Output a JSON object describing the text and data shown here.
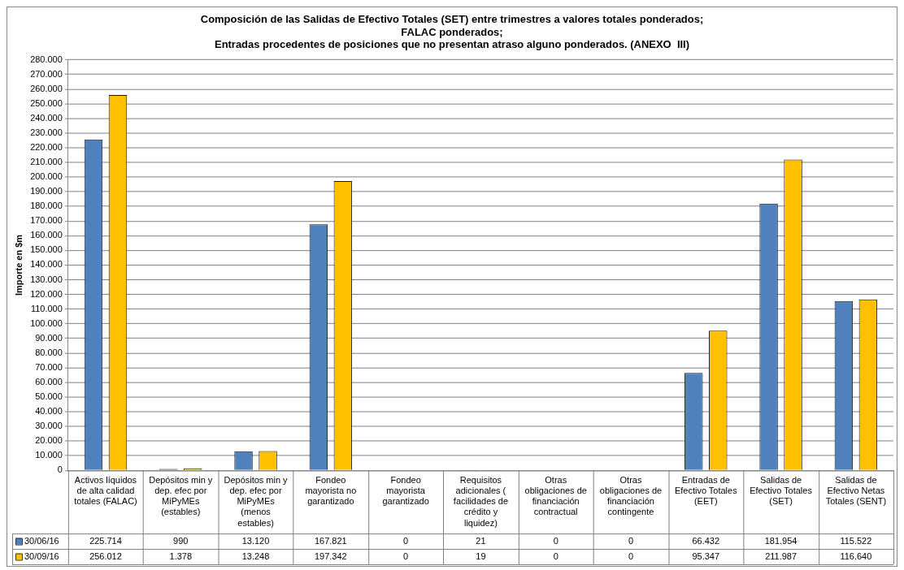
{
  "chart_data": {
    "type": "bar",
    "title": "Composición de las Salidas de Efectivo Totales (SET) entre trimestres a valores totales ponderados;\nFALAC ponderados;\nEntradas procedentes de posiciones que no presentan atraso alguno ponderados. (ANEXO  III)",
    "ylabel": "Importe en $m",
    "categories": [
      "Activos líquidos de alta calidad totales (FALAC)",
      "Depósitos min y dep. efec por MiPyMEs (estables)",
      "Depósitos min y dep. efec por MiPyMEs (menos estables)",
      "Fondeo mayorista no garantizado",
      "Fondeo mayorista garantizado",
      "Requisitos adicionales ( facilidades de crédito y liquidez)",
      "Otras obligaciones de financiación contractual",
      "Otras obligaciones de financiación contingente",
      "Entradas de Efectivo Totales (EET)",
      "Salidas de Efectivo Totales (SET)",
      "Salidas de Efectivo Netas Totales (SENT)"
    ],
    "series": [
      {
        "name": "30/06/16",
        "color": "#4f81bd",
        "values": [
          225714,
          990,
          13120,
          167821,
          0,
          21,
          0,
          0,
          66432,
          181954,
          115522
        ],
        "value_labels": [
          "225.714",
          "990",
          "13.120",
          "167.821",
          "0",
          "21",
          "0",
          "0",
          "66.432",
          "181.954",
          "115.522"
        ]
      },
      {
        "name": "30/09/16",
        "color": "#ffc000",
        "values": [
          256012,
          1378,
          13248,
          197342,
          0,
          19,
          0,
          0,
          95347,
          211987,
          116640
        ],
        "value_labels": [
          "256.012",
          "1.378",
          "13.248",
          "197.342",
          "0",
          "19",
          "0",
          "0",
          "95.347",
          "211.987",
          "116.640"
        ]
      }
    ],
    "ylim": [
      0,
      280000
    ],
    "yticks": [
      {
        "value": 0,
        "label": "0"
      },
      {
        "value": 10000,
        "label": "10.000"
      },
      {
        "value": 20000,
        "label": "20.000"
      },
      {
        "value": 30000,
        "label": "30.000"
      },
      {
        "value": 40000,
        "label": "40.000"
      },
      {
        "value": 50000,
        "label": "50.000"
      },
      {
        "value": 60000,
        "label": "60.000"
      },
      {
        "value": 70000,
        "label": "70.000"
      },
      {
        "value": 80000,
        "label": "80.000"
      },
      {
        "value": 90000,
        "label": "90.000"
      },
      {
        "value": 100000,
        "label": "100.000"
      },
      {
        "value": 110000,
        "label": "110.000"
      },
      {
        "value": 120000,
        "label": "120.000"
      },
      {
        "value": 130000,
        "label": "130.000"
      },
      {
        "value": 140000,
        "label": "140.000"
      },
      {
        "value": 150000,
        "label": "150.000"
      },
      {
        "value": 160000,
        "label": "160.000"
      },
      {
        "value": 170000,
        "label": "170.000"
      },
      {
        "value": 180000,
        "label": "180.000"
      },
      {
        "value": 190000,
        "label": "190.000"
      },
      {
        "value": 200000,
        "label": "200.000"
      },
      {
        "value": 210000,
        "label": "210.000"
      },
      {
        "value": 220000,
        "label": "220.000"
      },
      {
        "value": 230000,
        "label": "230.000"
      },
      {
        "value": 240000,
        "label": "240.000"
      },
      {
        "value": 250000,
        "label": "250.000"
      },
      {
        "value": 260000,
        "label": "260.000"
      },
      {
        "value": 270000,
        "label": "270.000"
      },
      {
        "value": 280000,
        "label": "280.000"
      }
    ],
    "grid": "y",
    "legend": "bottom"
  }
}
